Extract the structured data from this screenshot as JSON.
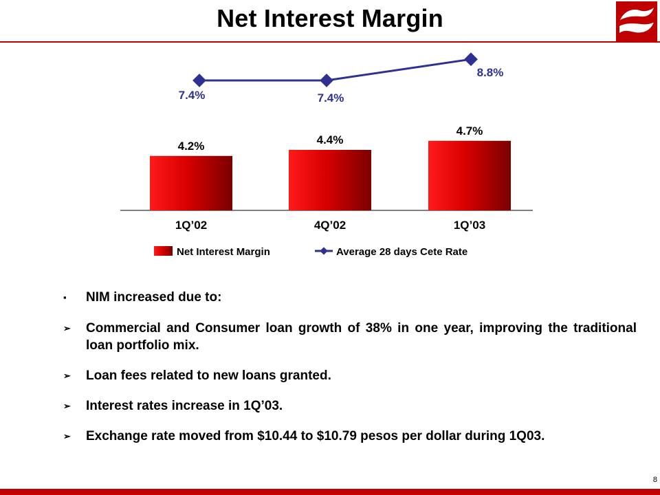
{
  "title": "Net Interest Margin",
  "page_number": "8",
  "colors": {
    "accent": "#c00000",
    "bar_dark": "#7a0000",
    "bar_light": "#ff1a1a",
    "line": "#2e3192"
  },
  "chart_data": {
    "type": "bar",
    "categories": [
      "1Q’02",
      "4Q’02",
      "1Q’03"
    ],
    "series": [
      {
        "name": "Net Interest Margin",
        "type": "bar",
        "values": [
          4.2,
          4.4,
          4.7
        ],
        "labels": [
          "4.2%",
          "4.4%",
          "4.7%"
        ]
      },
      {
        "name": "Average 28 days Cete Rate",
        "type": "line",
        "values": [
          7.4,
          7.4,
          8.8
        ],
        "labels": [
          "7.4%",
          "7.4%",
          "8.8%"
        ]
      }
    ],
    "legend": "bottom",
    "grid": false
  },
  "bullets": [
    {
      "marker": "▪",
      "text": "NIM increased due to:"
    },
    {
      "marker": "➢",
      "text": "Commercial and Consumer loan growth of 38% in one year, improving the traditional loan portfolio mix."
    },
    {
      "marker": "➢",
      "text": "Loan fees related to new loans granted."
    },
    {
      "marker": "➢",
      "text": "Interest rates increase in 1Q’03."
    },
    {
      "marker": "➢",
      "text": "Exchange rate moved from $10.44 to $10.79 pesos per dollar during 1Q03."
    }
  ]
}
